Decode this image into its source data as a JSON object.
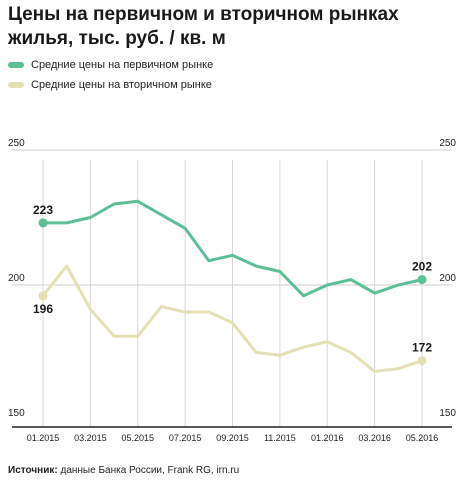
{
  "title": "Цены на первичном и вторичном рынках жилья, тыс. руб. / кв. м",
  "source": {
    "label": "Источник:",
    "text": " данные Банка России, Frank RG, irn.ru"
  },
  "colors": {
    "primary": "#5cbf96",
    "secondary": "#e5e0b4",
    "axis": "#222222",
    "grid": "#d7d7d7"
  },
  "chart_data": {
    "type": "line",
    "x": [
      "01.2015",
      "02.2015",
      "03.2015",
      "04.2015",
      "05.2015",
      "06.2015",
      "07.2015",
      "08.2015",
      "09.2015",
      "10.2015",
      "11.2015",
      "12.2015",
      "01.2016",
      "02.2016",
      "03.2016",
      "04.2016",
      "05.2016"
    ],
    "x_tick_labels": [
      "01.2015",
      "03.2015",
      "05.2015",
      "07.2015",
      "09.2015",
      "11.2015",
      "01.2016",
      "03.2016",
      "05.2016"
    ],
    "y_ticks": [
      250,
      200,
      150
    ],
    "ylim": [
      150,
      250
    ],
    "grid": true,
    "legend_position": "top-left",
    "series": [
      {
        "name": "Средние цены на первичном рынке",
        "color": "#5cbf96",
        "values": [
          223,
          223,
          225,
          230,
          231,
          226,
          221,
          209,
          211,
          207,
          205,
          196,
          200,
          202,
          197,
          200,
          202
        ]
      },
      {
        "name": "Средние цены на вторичном рынке",
        "color": "#e5e0b4",
        "values": [
          196,
          207,
          191,
          181,
          181,
          192,
          190,
          190,
          186,
          175,
          174,
          177,
          179,
          175,
          168,
          169,
          172
        ]
      }
    ],
    "annotations": [
      {
        "series": 0,
        "index": 0,
        "text": "223"
      },
      {
        "series": 0,
        "index": 16,
        "text": "202"
      },
      {
        "series": 1,
        "index": 0,
        "text": "196"
      },
      {
        "series": 1,
        "index": 16,
        "text": "172"
      }
    ]
  }
}
